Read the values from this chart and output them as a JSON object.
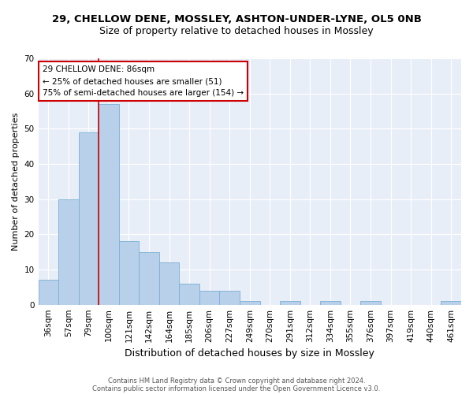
{
  "title1": "29, CHELLOW DENE, MOSSLEY, ASHTON-UNDER-LYNE, OL5 0NB",
  "title2": "Size of property relative to detached houses in Mossley",
  "xlabel": "Distribution of detached houses by size in Mossley",
  "ylabel": "Number of detached properties",
  "categories": [
    "36sqm",
    "57sqm",
    "79sqm",
    "100sqm",
    "121sqm",
    "142sqm",
    "164sqm",
    "185sqm",
    "206sqm",
    "227sqm",
    "249sqm",
    "270sqm",
    "291sqm",
    "312sqm",
    "334sqm",
    "355sqm",
    "376sqm",
    "397sqm",
    "419sqm",
    "440sqm",
    "461sqm"
  ],
  "values": [
    7,
    30,
    49,
    57,
    18,
    15,
    12,
    6,
    4,
    4,
    1,
    0,
    1,
    0,
    1,
    0,
    1,
    0,
    0,
    0,
    1
  ],
  "bar_color": "#b8d0ea",
  "bar_edge_color": "#7aafd4",
  "bar_width": 1.0,
  "red_line_x": 2.5,
  "annotation_line1": "29 CHELLOW DENE: 86sqm",
  "annotation_line2": "← 25% of detached houses are smaller (51)",
  "annotation_line3": "75% of semi-detached houses are larger (154) →",
  "annotation_box_color": "white",
  "annotation_box_edge_color": "#cc0000",
  "red_line_color": "#cc0000",
  "ylim": [
    0,
    70
  ],
  "yticks": [
    0,
    10,
    20,
    30,
    40,
    50,
    60,
    70
  ],
  "background_color": "#e8eef8",
  "footer1": "Contains HM Land Registry data © Crown copyright and database right 2024.",
  "footer2": "Contains public sector information licensed under the Open Government Licence v3.0.",
  "title1_fontsize": 9.5,
  "title2_fontsize": 9,
  "xlabel_fontsize": 9,
  "ylabel_fontsize": 8,
  "tick_fontsize": 7.5,
  "annotation_fontsize": 7.5,
  "footer_fontsize": 6
}
